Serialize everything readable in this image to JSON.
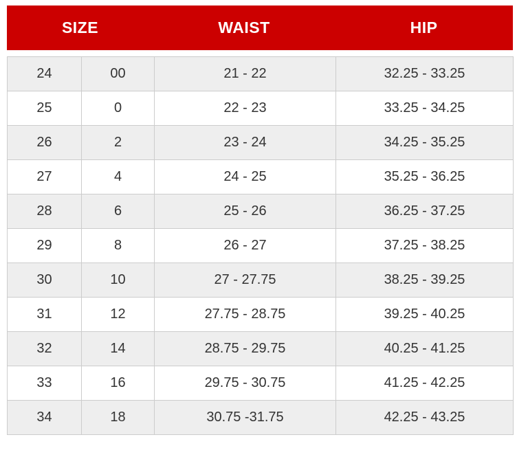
{
  "header": {
    "cells": [
      {
        "label": "SIZE",
        "span": 2
      },
      {
        "label": "WAIST",
        "span": 1
      },
      {
        "label": "HIP",
        "span": 1
      }
    ]
  },
  "chart_data": {
    "type": "table",
    "title": "Size chart",
    "columns": [
      "SIZE",
      "SIZE",
      "WAIST",
      "HIP"
    ],
    "rows": [
      [
        "24",
        "00",
        "21 - 22",
        "32.25 - 33.25"
      ],
      [
        "25",
        "0",
        "22 - 23",
        "33.25 - 34.25"
      ],
      [
        "26",
        "2",
        "23 - 24",
        "34.25 - 35.25"
      ],
      [
        "27",
        "4",
        "24 - 25",
        "35.25 - 36.25"
      ],
      [
        "28",
        "6",
        "25 - 26",
        "36.25 - 37.25"
      ],
      [
        "29",
        "8",
        "26 - 27",
        "37.25 - 38.25"
      ],
      [
        "30",
        "10",
        "27 - 27.75",
        "38.25 - 39.25"
      ],
      [
        "31",
        "12",
        "27.75 - 28.75",
        "39.25 - 40.25"
      ],
      [
        "32",
        "14",
        "28.75 - 29.75",
        "40.25 - 41.25"
      ],
      [
        "33",
        "16",
        "29.75 - 30.75",
        "41.25 - 42.25"
      ],
      [
        "34",
        "18",
        "30.75 -31.75",
        "42.25 - 43.25"
      ]
    ],
    "layout": {
      "grid": true,
      "alternating_rows": true
    }
  },
  "colors": {
    "header_bg": "#cc0000",
    "header_text": "#ffffff",
    "row_alt_bg": "#eeeeee",
    "row_bg": "#ffffff",
    "border": "#cccccc",
    "text": "#333333"
  }
}
